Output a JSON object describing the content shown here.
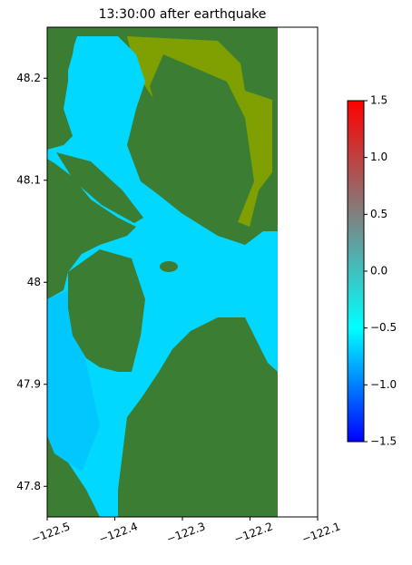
{
  "chart_data": {
    "type": "heatmap",
    "title": "13:30:00 after earthquake",
    "xlim": [
      -122.5,
      -122.1
    ],
    "xticks": [
      {
        "value": -122.5,
        "label": "−122.5"
      },
      {
        "value": -122.4,
        "label": "−122.4"
      },
      {
        "value": -122.3,
        "label": "−122.3"
      },
      {
        "value": -122.2,
        "label": "−122.2"
      },
      {
        "value": -122.1,
        "label": "−122.1"
      }
    ],
    "ylim": [
      47.77,
      48.25
    ],
    "yticks": [
      47.8,
      47.9,
      48.0,
      48.1,
      48.2
    ],
    "colorbar": {
      "ylim": [
        -1.5,
        1.5
      ],
      "yticks": [
        {
          "value": -1.5,
          "label": "−1.5"
        },
        {
          "value": -1.0,
          "label": "−1.0"
        },
        {
          "value": -0.5,
          "label": "−0.5"
        },
        {
          "value": 0.0,
          "label": "0.0"
        },
        0.5,
        {
          "value": 1.0,
          "label": "1.0"
        },
        1.5
      ],
      "colors": [
        "#0000ff",
        "#00ffff",
        "#808080",
        "#ff0000"
      ]
    }
  }
}
